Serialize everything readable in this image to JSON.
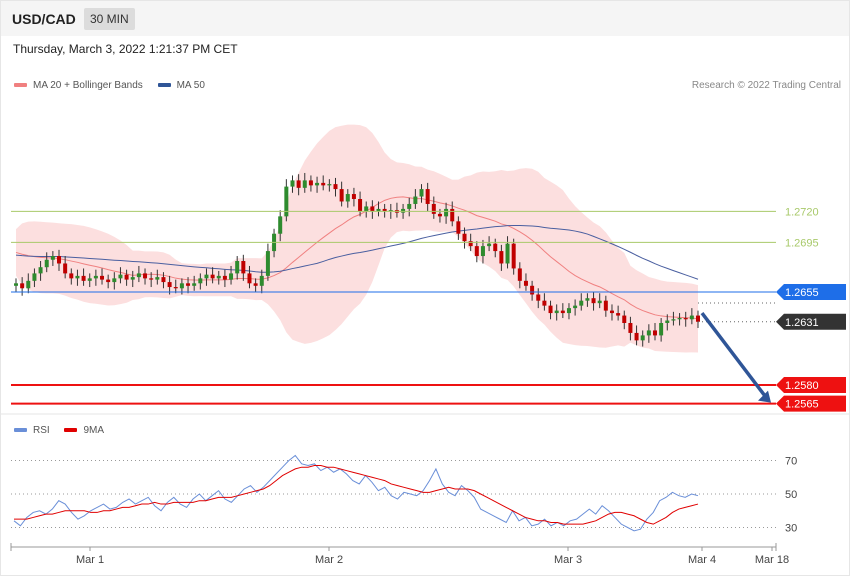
{
  "header": {
    "symbol": "USD/CAD",
    "timeframe": "30 MIN"
  },
  "datetime": "Thursday, March 3, 2022 1:21:37 PM CET",
  "legend": [
    {
      "label": "MA 20 + Bollinger Bands",
      "color": "#f08080"
    },
    {
      "label": "MA 50",
      "color": "#2f5597"
    }
  ],
  "credit": "Research © 2022 Trading Central",
  "rsi_legend": [
    {
      "label": "RSI",
      "color": "#6a8fd8"
    },
    {
      "label": "9MA",
      "color": "#e00000"
    }
  ],
  "colors": {
    "up": "#2e8b2e",
    "down": "#c00000",
    "bands": "#fbd4d4",
    "ma20": "#f08080",
    "ma50": "#4a5fa0",
    "arrow": "#2f5597"
  },
  "chart_data": {
    "type": "candlestick",
    "ylim": [
      1.2555,
      1.2805
    ],
    "levels": [
      {
        "value": 1.272,
        "label": "1.2720",
        "style": "resistance-minor",
        "color": "#a8c96a"
      },
      {
        "value": 1.2695,
        "label": "1.2695",
        "style": "resistance-minor",
        "color": "#a8c96a"
      },
      {
        "value": 1.2655,
        "label": "1.2655",
        "style": "pivot",
        "color": "#1e6ee8"
      },
      {
        "value": 1.2631,
        "label": "1.2631",
        "style": "last-price",
        "color": "#333333"
      },
      {
        "value": 1.258,
        "label": "1.2580",
        "style": "support",
        "color": "#ee1111"
      },
      {
        "value": 1.2565,
        "label": "1.2565",
        "style": "support",
        "color": "#ee1111"
      }
    ],
    "x_ticks": [
      "Mar 1",
      "Mar 2",
      "Mar 3",
      "Mar 4",
      "Mar 18"
    ],
    "projection": {
      "from": 1.2638,
      "to": 1.2565
    },
    "rsi": {
      "ylim": [
        20,
        80
      ],
      "levels": [
        70,
        50,
        30
      ],
      "labels": [
        "70",
        "50",
        "30"
      ],
      "rsi": [
        34,
        31,
        36,
        39,
        40,
        38,
        41,
        46,
        44,
        39,
        35,
        37,
        40,
        42,
        44,
        41,
        42,
        45,
        47,
        44,
        46,
        48,
        43,
        40,
        45,
        48,
        44,
        42,
        47,
        50,
        46,
        49,
        52,
        47,
        45,
        49,
        53,
        55,
        51,
        54,
        58,
        62,
        66,
        70,
        73,
        68,
        67,
        68,
        64,
        66,
        63,
        65,
        62,
        58,
        56,
        61,
        57,
        52,
        54,
        49,
        47,
        51,
        50,
        49,
        52,
        58,
        65,
        56,
        51,
        49,
        55,
        52,
        48,
        41,
        39,
        37,
        35,
        33,
        40,
        34,
        36,
        31,
        32,
        35,
        31,
        33,
        31,
        34,
        35,
        38,
        41,
        38,
        43,
        40,
        36,
        32,
        30,
        28,
        29,
        35,
        39,
        46,
        48,
        51,
        49,
        48,
        50,
        49
      ],
      "ma9": [
        35,
        35,
        35,
        36,
        37,
        38,
        38,
        39,
        40,
        40,
        40,
        40,
        39,
        39,
        40,
        40,
        41,
        42,
        42,
        43,
        44,
        44,
        45,
        44,
        44,
        45,
        45,
        45,
        45,
        46,
        46,
        47,
        48,
        48,
        48,
        49,
        50,
        51,
        52,
        53,
        55,
        58,
        61,
        63,
        65,
        66,
        66,
        67,
        67,
        66,
        66,
        65,
        64,
        63,
        62,
        61,
        60,
        59,
        58,
        56,
        55,
        54,
        53,
        52,
        51,
        51,
        52,
        53,
        54,
        53,
        53,
        53,
        52,
        50,
        48,
        46,
        44,
        42,
        40,
        38,
        36,
        35,
        34,
        34,
        33,
        33,
        32,
        32,
        32,
        32,
        33,
        34,
        36,
        38,
        39,
        39,
        38,
        37,
        35,
        33,
        32,
        34,
        36,
        39,
        41,
        42,
        43,
        44
      ]
    }
  }
}
